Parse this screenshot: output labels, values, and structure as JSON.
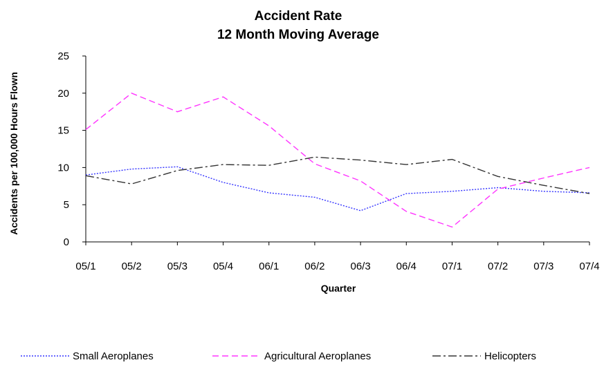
{
  "chart_data": {
    "type": "line",
    "title": [
      "Accident Rate",
      "12 Month Moving Average"
    ],
    "xlabel": "Quarter",
    "ylabel": "Accidents per 100,000 Hours Flown",
    "ylim": [
      0,
      25
    ],
    "yticks": [
      0,
      5,
      10,
      15,
      20,
      25
    ],
    "grid": false,
    "legend_position": "bottom",
    "categories": [
      "05/1",
      "05/2",
      "05/3",
      "05/4",
      "06/1",
      "06/2",
      "06/3",
      "06/4",
      "07/1",
      "07/2",
      "07/3",
      "07/4"
    ],
    "series": [
      {
        "name": "Small Aeroplanes",
        "color": "#3333ff",
        "dash": "dotted",
        "values": [
          9.0,
          9.8,
          10.1,
          8.0,
          6.6,
          6.0,
          4.2,
          6.5,
          6.8,
          7.3,
          6.8,
          6.6
        ]
      },
      {
        "name": "Agricultural Aeroplanes",
        "color": "#ff33ff",
        "dash": "dashed",
        "values": [
          15.1,
          20.0,
          17.5,
          19.5,
          15.6,
          10.5,
          8.2,
          4.1,
          2.0,
          7.1,
          8.6,
          10.0
        ]
      },
      {
        "name": "Helicopters",
        "color": "#333333",
        "dash": "dash-dot",
        "values": [
          8.9,
          7.8,
          9.6,
          10.4,
          10.3,
          11.4,
          11.0,
          10.4,
          11.1,
          8.8,
          7.6,
          6.5
        ]
      }
    ]
  }
}
